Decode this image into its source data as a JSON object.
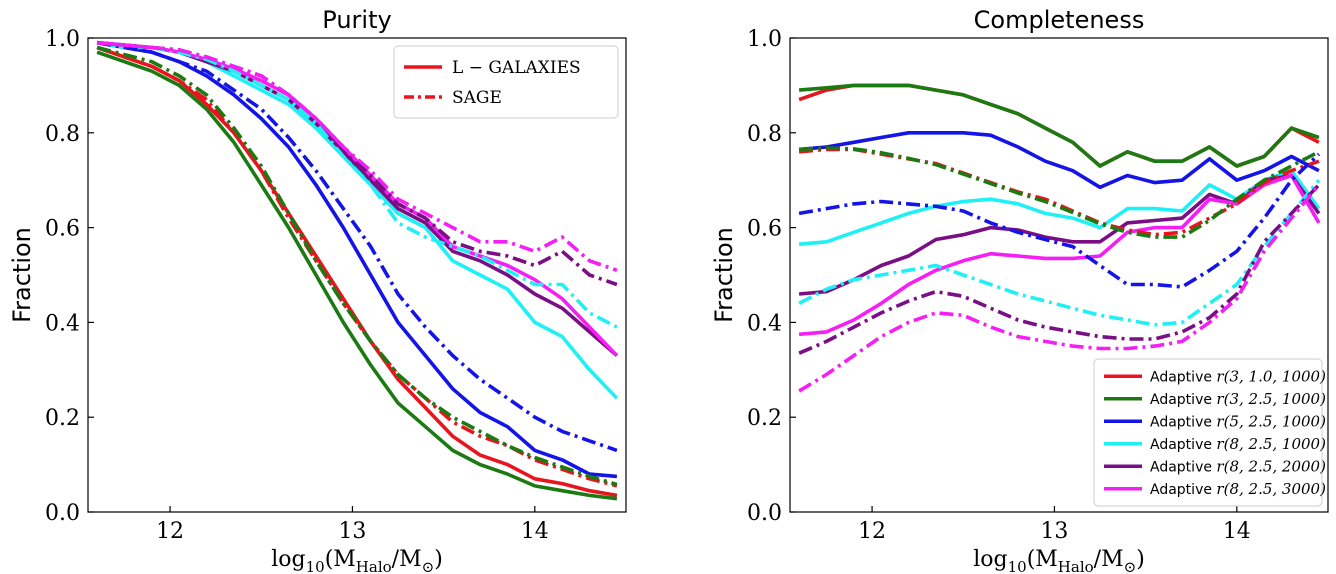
{
  "chart_data": [
    {
      "type": "line",
      "title": "Purity",
      "xlabel": "log10(M_Halo/M_⊙)",
      "ylabel": "Fraction",
      "xlim": [
        11.55,
        14.5
      ],
      "ylim": [
        0.0,
        1.0
      ],
      "xticks": [
        12,
        13,
        14
      ],
      "yticks": [
        0.0,
        0.2,
        0.4,
        0.6,
        0.8,
        1.0
      ],
      "xtick_labels": [
        "12",
        "13",
        "14"
      ],
      "ytick_labels": [
        "0.0",
        "0.2",
        "0.4",
        "0.6",
        "0.8",
        "1.0"
      ],
      "legend": {
        "position": "top-right",
        "entries": [
          {
            "label": "L − GALAXIES",
            "style": "solid",
            "color": "#e8141e"
          },
          {
            "label": "SAGE",
            "style": "dashdot",
            "color": "#e8141e"
          }
        ]
      },
      "x": [
        11.6,
        11.75,
        11.9,
        12.05,
        12.2,
        12.35,
        12.5,
        12.65,
        12.8,
        12.95,
        13.1,
        13.25,
        13.4,
        13.55,
        13.7,
        13.85,
        14.0,
        14.15,
        14.3,
        14.45
      ],
      "series": [
        {
          "color": "#e8141e",
          "style": "solid",
          "values": [
            0.98,
            0.96,
            0.94,
            0.91,
            0.86,
            0.8,
            0.72,
            0.63,
            0.54,
            0.45,
            0.36,
            0.28,
            0.22,
            0.16,
            0.12,
            0.1,
            0.07,
            0.06,
            0.045,
            0.035
          ]
        },
        {
          "color": "#1b7a12",
          "style": "solid",
          "values": [
            0.97,
            0.95,
            0.93,
            0.9,
            0.85,
            0.78,
            0.69,
            0.6,
            0.5,
            0.4,
            0.31,
            0.23,
            0.18,
            0.13,
            0.1,
            0.08,
            0.055,
            0.045,
            0.035,
            0.028
          ]
        },
        {
          "color": "#1414e6",
          "style": "solid",
          "values": [
            0.99,
            0.98,
            0.97,
            0.95,
            0.92,
            0.88,
            0.83,
            0.77,
            0.69,
            0.6,
            0.5,
            0.4,
            0.33,
            0.26,
            0.21,
            0.18,
            0.13,
            0.11,
            0.08,
            0.075
          ]
        },
        {
          "color": "#1ef0f5",
          "style": "solid",
          "values": [
            0.99,
            0.98,
            0.98,
            0.97,
            0.95,
            0.92,
            0.89,
            0.86,
            0.81,
            0.75,
            0.69,
            0.63,
            0.6,
            0.53,
            0.5,
            0.47,
            0.4,
            0.37,
            0.3,
            0.24
          ]
        },
        {
          "color": "#7a0e85",
          "style": "solid",
          "values": [
            0.99,
            0.985,
            0.98,
            0.97,
            0.95,
            0.93,
            0.9,
            0.87,
            0.82,
            0.76,
            0.7,
            0.64,
            0.61,
            0.55,
            0.53,
            0.5,
            0.46,
            0.43,
            0.38,
            0.33
          ]
        },
        {
          "color": "#f51ef5",
          "style": "solid",
          "values": [
            0.99,
            0.985,
            0.98,
            0.97,
            0.955,
            0.935,
            0.91,
            0.88,
            0.83,
            0.77,
            0.71,
            0.65,
            0.62,
            0.56,
            0.54,
            0.52,
            0.49,
            0.45,
            0.39,
            0.33
          ]
        },
        {
          "color": "#e8141e",
          "style": "dashdot",
          "values": [
            0.98,
            0.96,
            0.94,
            0.91,
            0.87,
            0.8,
            0.72,
            0.62,
            0.53,
            0.44,
            0.36,
            0.29,
            0.24,
            0.19,
            0.16,
            0.14,
            0.11,
            0.09,
            0.07,
            0.055
          ]
        },
        {
          "color": "#1b7a12",
          "style": "dashdot",
          "values": [
            0.98,
            0.965,
            0.95,
            0.92,
            0.88,
            0.81,
            0.73,
            0.63,
            0.53,
            0.44,
            0.36,
            0.29,
            0.24,
            0.2,
            0.17,
            0.14,
            0.115,
            0.095,
            0.075,
            0.058
          ]
        },
        {
          "color": "#1414e6",
          "style": "dashdot",
          "values": [
            0.99,
            0.98,
            0.97,
            0.95,
            0.93,
            0.89,
            0.85,
            0.79,
            0.72,
            0.64,
            0.56,
            0.46,
            0.39,
            0.33,
            0.28,
            0.24,
            0.2,
            0.17,
            0.15,
            0.13
          ]
        },
        {
          "color": "#1ef0f5",
          "style": "dashdot",
          "values": [
            0.99,
            0.985,
            0.98,
            0.97,
            0.955,
            0.93,
            0.9,
            0.87,
            0.82,
            0.75,
            0.69,
            0.61,
            0.58,
            0.56,
            0.54,
            0.51,
            0.48,
            0.48,
            0.42,
            0.39
          ]
        },
        {
          "color": "#7a0e85",
          "style": "dashdot",
          "values": [
            0.99,
            0.985,
            0.98,
            0.975,
            0.96,
            0.94,
            0.92,
            0.88,
            0.83,
            0.77,
            0.71,
            0.65,
            0.62,
            0.57,
            0.55,
            0.54,
            0.52,
            0.55,
            0.5,
            0.48
          ]
        },
        {
          "color": "#f51ef5",
          "style": "dashdot",
          "values": [
            0.99,
            0.985,
            0.98,
            0.975,
            0.96,
            0.94,
            0.92,
            0.88,
            0.83,
            0.77,
            0.72,
            0.66,
            0.63,
            0.6,
            0.57,
            0.57,
            0.55,
            0.58,
            0.53,
            0.51
          ]
        }
      ]
    },
    {
      "type": "line",
      "title": "Completeness",
      "xlabel": "log10(M_Halo/M_⊙)",
      "ylabel": "Fraction",
      "xlim": [
        11.55,
        14.5
      ],
      "ylim": [
        0.0,
        1.0
      ],
      "xticks": [
        12,
        13,
        14
      ],
      "yticks": [
        0.0,
        0.2,
        0.4,
        0.6,
        0.8,
        1.0
      ],
      "xtick_labels": [
        "12",
        "13",
        "14"
      ],
      "ytick_labels": [
        "0.0",
        "0.2",
        "0.4",
        "0.6",
        "0.8",
        "1.0"
      ],
      "legend": {
        "position": "bottom-right",
        "entries": [
          {
            "prefix": "Adaptive",
            "label": "r(3, 1.0, 1000)",
            "style": "solid",
            "color": "#e8141e"
          },
          {
            "prefix": "Adaptive",
            "label": "r(3, 2.5, 1000)",
            "style": "solid",
            "color": "#1b7a12"
          },
          {
            "prefix": "Adaptive",
            "label": "r(5, 2.5, 1000)",
            "style": "solid",
            "color": "#1414e6"
          },
          {
            "prefix": "Adaptive",
            "label": "r(8, 2.5, 1000)",
            "style": "solid",
            "color": "#1ef0f5"
          },
          {
            "prefix": "Adaptive",
            "label": "r(8, 2.5, 2000)",
            "style": "solid",
            "color": "#7a0e85"
          },
          {
            "prefix": "Adaptive",
            "label": "r(8, 2.5, 3000)",
            "style": "solid",
            "color": "#f51ef5"
          }
        ]
      },
      "x": [
        11.6,
        11.75,
        11.9,
        12.05,
        12.2,
        12.35,
        12.5,
        12.65,
        12.8,
        12.95,
        13.1,
        13.25,
        13.4,
        13.55,
        13.7,
        13.85,
        14.0,
        14.15,
        14.3,
        14.45
      ],
      "series": [
        {
          "color": "#e8141e",
          "style": "solid",
          "values": [
            0.87,
            0.89,
            0.9,
            0.9,
            0.9,
            0.89,
            0.88,
            0.86,
            0.84,
            0.81,
            0.78,
            0.73,
            0.76,
            0.74,
            0.74,
            0.77,
            0.73,
            0.75,
            0.81,
            0.78
          ]
        },
        {
          "color": "#1b7a12",
          "style": "solid",
          "values": [
            0.89,
            0.895,
            0.9,
            0.9,
            0.9,
            0.89,
            0.88,
            0.86,
            0.84,
            0.81,
            0.78,
            0.73,
            0.76,
            0.74,
            0.74,
            0.77,
            0.73,
            0.75,
            0.81,
            0.79
          ]
        },
        {
          "color": "#1414e6",
          "style": "solid",
          "values": [
            0.765,
            0.77,
            0.78,
            0.79,
            0.8,
            0.8,
            0.8,
            0.795,
            0.77,
            0.74,
            0.72,
            0.685,
            0.71,
            0.695,
            0.7,
            0.745,
            0.7,
            0.72,
            0.75,
            0.72
          ]
        },
        {
          "color": "#1ef0f5",
          "style": "solid",
          "values": [
            0.565,
            0.57,
            0.59,
            0.61,
            0.63,
            0.645,
            0.655,
            0.66,
            0.65,
            0.63,
            0.62,
            0.6,
            0.64,
            0.64,
            0.635,
            0.69,
            0.66,
            0.7,
            0.72,
            0.64
          ]
        },
        {
          "color": "#7a0e85",
          "style": "solid",
          "values": [
            0.46,
            0.465,
            0.49,
            0.52,
            0.54,
            0.575,
            0.585,
            0.6,
            0.595,
            0.58,
            0.57,
            0.57,
            0.61,
            0.615,
            0.62,
            0.67,
            0.65,
            0.7,
            0.71,
            0.63
          ]
        },
        {
          "color": "#f51ef5",
          "style": "solid",
          "values": [
            0.375,
            0.38,
            0.405,
            0.44,
            0.48,
            0.51,
            0.53,
            0.545,
            0.54,
            0.535,
            0.535,
            0.54,
            0.59,
            0.6,
            0.6,
            0.66,
            0.65,
            0.69,
            0.71,
            0.61
          ]
        },
        {
          "color": "#e8141e",
          "style": "dashdot",
          "values": [
            0.76,
            0.765,
            0.765,
            0.755,
            0.745,
            0.735,
            0.715,
            0.695,
            0.675,
            0.66,
            0.635,
            0.61,
            0.595,
            0.585,
            0.59,
            0.62,
            0.65,
            0.695,
            0.72,
            0.74
          ]
        },
        {
          "color": "#1b7a12",
          "style": "dashdot",
          "values": [
            0.765,
            0.768,
            0.766,
            0.758,
            0.746,
            0.733,
            0.713,
            0.693,
            0.673,
            0.655,
            0.632,
            0.608,
            0.59,
            0.58,
            0.58,
            0.615,
            0.66,
            0.7,
            0.73,
            0.76
          ]
        },
        {
          "color": "#1414e6",
          "style": "dashdot",
          "values": [
            0.63,
            0.64,
            0.65,
            0.655,
            0.65,
            0.645,
            0.635,
            0.61,
            0.59,
            0.575,
            0.56,
            0.52,
            0.48,
            0.48,
            0.475,
            0.51,
            0.55,
            0.62,
            0.7,
            0.755
          ]
        },
        {
          "color": "#1ef0f5",
          "style": "dashdot",
          "values": [
            0.44,
            0.47,
            0.49,
            0.5,
            0.51,
            0.52,
            0.5,
            0.48,
            0.46,
            0.445,
            0.43,
            0.415,
            0.405,
            0.395,
            0.4,
            0.44,
            0.48,
            0.56,
            0.63,
            0.7
          ]
        },
        {
          "color": "#7a0e85",
          "style": "dashdot",
          "values": [
            0.335,
            0.36,
            0.39,
            0.42,
            0.445,
            0.465,
            0.455,
            0.43,
            0.405,
            0.39,
            0.38,
            0.37,
            0.365,
            0.365,
            0.38,
            0.41,
            0.46,
            0.57,
            0.63,
            0.69
          ]
        },
        {
          "color": "#f51ef5",
          "style": "dashdot",
          "values": [
            0.255,
            0.29,
            0.33,
            0.37,
            0.4,
            0.42,
            0.415,
            0.39,
            0.37,
            0.36,
            0.35,
            0.345,
            0.345,
            0.35,
            0.36,
            0.4,
            0.45,
            0.55,
            0.62,
            0.69
          ]
        }
      ]
    }
  ]
}
